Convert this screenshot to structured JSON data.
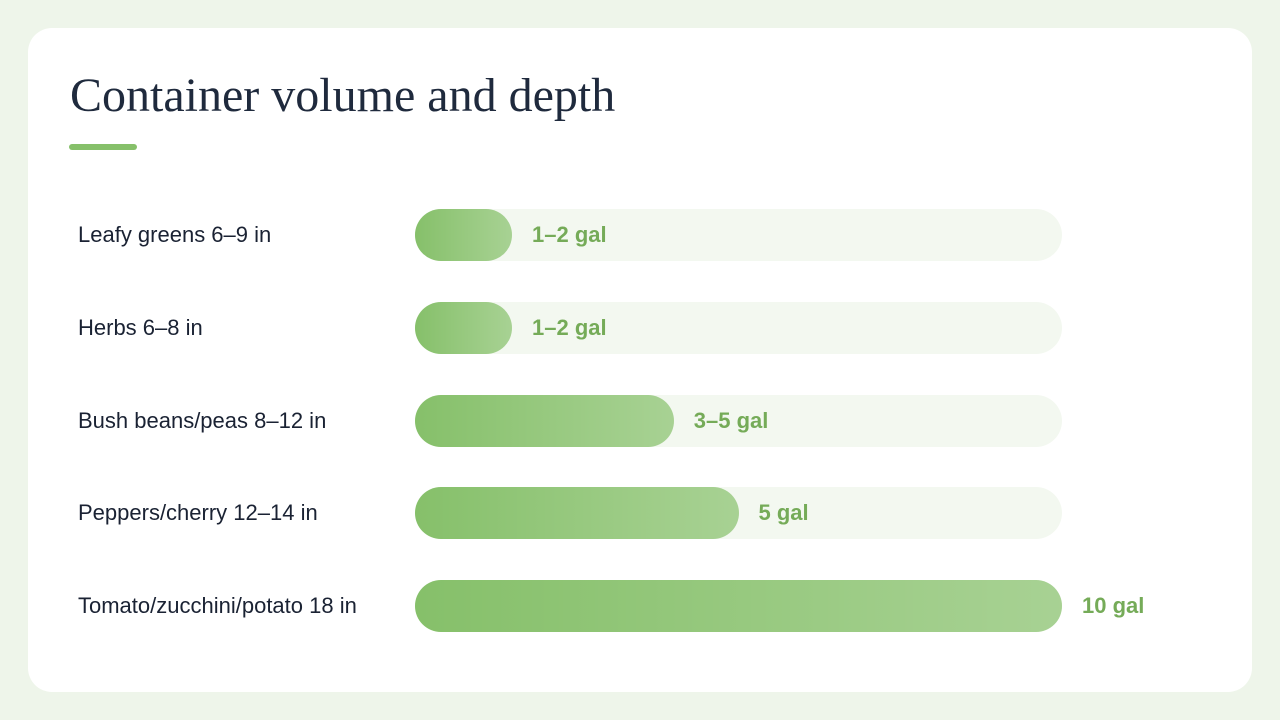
{
  "chart_data": {
    "type": "bar",
    "orientation": "horizontal",
    "title": "Container volume and depth",
    "categories": [
      "Leafy greens 6–9 in",
      "Herbs 6–8 in",
      "Bush beans/peas 8–12 in",
      "Peppers/cherry 12–14 in",
      "Tomato/zucchini/potato 18 in"
    ],
    "values": [
      1.5,
      1.5,
      4,
      5,
      10
    ],
    "value_labels": [
      "1–2 gal",
      "1–2 gal",
      "3–5 gal",
      "5 gal",
      "10 gal"
    ],
    "color": "#86c06a",
    "xlim": [
      0,
      10
    ]
  }
}
